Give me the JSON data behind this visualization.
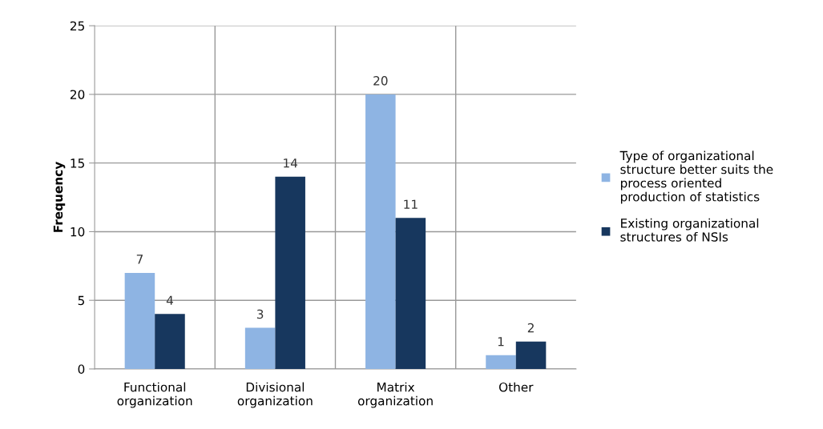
{
  "chart_data": {
    "type": "bar",
    "ylabel": "Frequency",
    "categories": [
      "Functional\norganization",
      "Divisional\norganization",
      "Matrix\norganization",
      "Other"
    ],
    "series": [
      {
        "name": "Type of organizational\nstructure better suits the\nprocess oriented\nproduction of statistics",
        "color": "#8eb4e3",
        "values": [
          7,
          3,
          20,
          1
        ]
      },
      {
        "name": "Existing organizational\nstructures of NSIs",
        "color": "#17375e",
        "values": [
          4,
          14,
          11,
          2
        ]
      }
    ],
    "ylim": [
      0,
      25
    ],
    "yticks": [
      0,
      5,
      10,
      15,
      20,
      25
    ],
    "grid": true,
    "legend": "right",
    "data_labels": true
  }
}
